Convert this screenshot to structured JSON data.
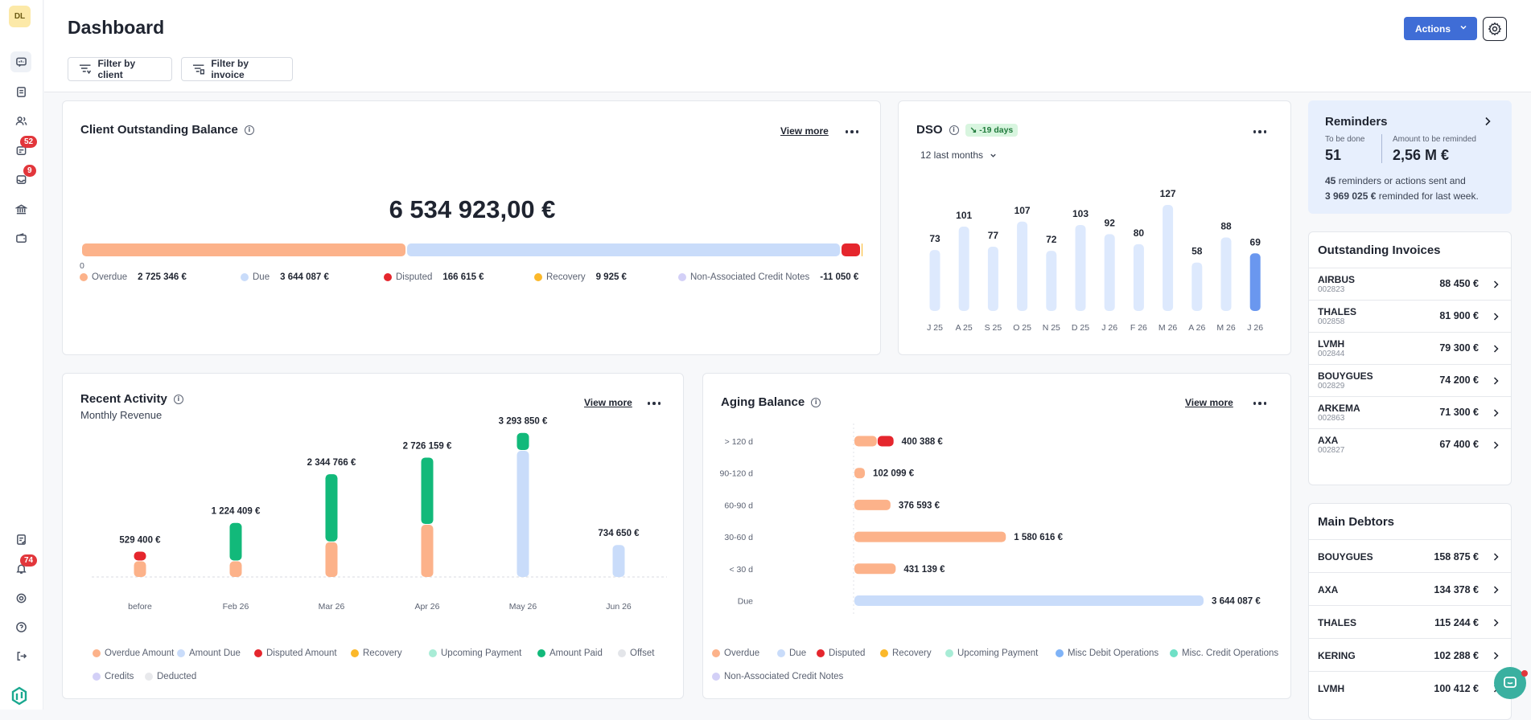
{
  "sidebar": {
    "avatar": "DL",
    "badges": {
      "invoices": "52",
      "inbox": "9",
      "notifications": "74"
    }
  },
  "header": {
    "title": "Dashboard",
    "filter_client": "Filter by client",
    "filter_invoice": "Filter by invoice",
    "actions": "Actions"
  },
  "outstanding": {
    "title": "Client Outstanding Balance",
    "view_more": "View more",
    "total": "6 534 923,00 €",
    "zero": "0",
    "segments": [
      {
        "label": "Overdue",
        "value": "2 725 346 €",
        "amount": 2725346,
        "color": "#fcb28a"
      },
      {
        "label": "Due",
        "value": "3 644 087 €",
        "amount": 3644087,
        "color": "#c9dcfa"
      },
      {
        "label": "Disputed",
        "value": "166 615 €",
        "amount": 166615,
        "color": "#e5262d"
      },
      {
        "label": "Recovery",
        "value": "9 925 €",
        "amount": 9925,
        "color": "#fbb82a"
      },
      {
        "label": "Non-Associated Credit Notes",
        "value": "-11 050 €",
        "amount": -11050,
        "color": "#d3d0f7"
      }
    ]
  },
  "dso": {
    "title": "DSO",
    "delta": "↘ -19 days",
    "period": "12 last months",
    "chart_data": {
      "type": "bar",
      "categories": [
        "J 25",
        "A 25",
        "S 25",
        "O 25",
        "N 25",
        "D 25",
        "J 26",
        "F 26",
        "M 26",
        "A 26",
        "M 26",
        "J 26"
      ],
      "values": [
        73,
        101,
        77,
        107,
        72,
        103,
        92,
        80,
        127,
        58,
        88,
        69
      ],
      "highlight_index": 11,
      "colors": {
        "bar": "#dde9fd",
        "highlight": "#6a97ef"
      }
    }
  },
  "reminders": {
    "title": "Reminders",
    "todo_label": "To be done",
    "todo_value": "51",
    "amount_label": "Amount to be reminded",
    "amount_value": "2,56 M €",
    "summary_count": "45",
    "summary_text1": " reminders or actions sent and",
    "summary_amount": "3 969 025 €",
    "summary_text2": " reminded for last week."
  },
  "outstanding_invoices": {
    "title": "Outstanding Invoices",
    "items": [
      {
        "name": "AIRBUS",
        "code": "002823",
        "amount": "88 450 €"
      },
      {
        "name": "THALES",
        "code": "002858",
        "amount": "81 900 €"
      },
      {
        "name": "LVMH",
        "code": "002844",
        "amount": "79 300 €"
      },
      {
        "name": "BOUYGUES",
        "code": "002829",
        "amount": "74 200 €"
      },
      {
        "name": "ARKEMA",
        "code": "002863",
        "amount": "71 300 €"
      },
      {
        "name": "AXA",
        "code": "002827",
        "amount": "67 400 €"
      }
    ]
  },
  "main_debtors": {
    "title": "Main Debtors",
    "items": [
      {
        "name": "BOUYGUES",
        "amount": "158 875 €"
      },
      {
        "name": "AXA",
        "amount": "134 378 €"
      },
      {
        "name": "THALES",
        "amount": "115 244 €"
      },
      {
        "name": "KERING",
        "amount": "102 288 €"
      },
      {
        "name": "LVMH",
        "amount": "100 412 €"
      }
    ]
  },
  "recent_activity": {
    "title": "Recent Activity",
    "subtitle": "Monthly Revenue",
    "view_more": "View more",
    "chart_data": {
      "type": "bar",
      "stacked": true,
      "categories": [
        "before",
        "Feb 26",
        "Mar 26",
        "Apr 26",
        "May 26",
        "Jun 26"
      ],
      "totals": [
        "529 400 €",
        "1 224 409 €",
        "2 344 766 €",
        "2 726 159 €",
        "3 293 850 €",
        "734 650 €"
      ],
      "series": [
        {
          "name": "Overdue Amount",
          "color": "#fcb28a",
          "values": [
            360000,
            360000,
            800000,
            1200000,
            0,
            0
          ]
        },
        {
          "name": "Amount Due",
          "color": "#c9dcfa",
          "values": [
            0,
            0,
            0,
            0,
            2900000,
            734650
          ]
        },
        {
          "name": "Disputed Amount",
          "color": "#e5262d",
          "values": [
            169400,
            0,
            0,
            0,
            0,
            0
          ]
        },
        {
          "name": "Recovery",
          "color": "#fbb82a",
          "values": [
            0,
            0,
            0,
            0,
            0,
            0
          ]
        },
        {
          "name": "Upcoming Payment",
          "color": "#a8ecd6",
          "values": [
            0,
            0,
            0,
            0,
            0,
            0
          ]
        },
        {
          "name": "Amount Paid",
          "color": "#12b97a",
          "values": [
            0,
            864409,
            1544766,
            1526159,
            393850,
            0
          ]
        },
        {
          "name": "Offset",
          "color": "#e3e5e9",
          "values": [
            0,
            0,
            0,
            0,
            0,
            0
          ]
        },
        {
          "name": "Credits",
          "color": "#d3d0f7",
          "values": [
            0,
            0,
            0,
            0,
            0,
            0
          ]
        },
        {
          "name": "Deducted",
          "color": "#e8e9ec",
          "values": [
            0,
            0,
            0,
            0,
            0,
            0
          ]
        }
      ],
      "ylim": [
        0,
        3400000
      ]
    }
  },
  "aging": {
    "title": "Aging Balance",
    "view_more": "View more",
    "chart_data": {
      "type": "bar",
      "orientation": "horizontal",
      "categories": [
        "> 120 d",
        "90-120 d",
        "60-90 d",
        "30-60 d",
        "< 30 d",
        "Due"
      ],
      "labels": [
        "400 388 €",
        "102 099 €",
        "376 593 €",
        "1 580 616 €",
        "431 139 €",
        "3 644 087 €"
      ],
      "series": [
        {
          "name": "Overdue",
          "color": "#fcb28a",
          "values": [
            233773,
            102099,
            376593,
            1580616,
            431139,
            0
          ]
        },
        {
          "name": "Due",
          "color": "#c9dcfa",
          "values": [
            0,
            0,
            0,
            0,
            0,
            3644087
          ]
        },
        {
          "name": "Disputed",
          "color": "#e5262d",
          "values": [
            166615,
            0,
            0,
            0,
            0,
            0
          ]
        }
      ],
      "xlim": [
        0,
        3644087
      ]
    },
    "legend": [
      {
        "label": "Overdue",
        "color": "#fcb28a"
      },
      {
        "label": "Due",
        "color": "#c9dcfa"
      },
      {
        "label": "Disputed",
        "color": "#e5262d"
      },
      {
        "label": "Recovery",
        "color": "#fbb82a"
      },
      {
        "label": "Upcoming Payment",
        "color": "#a8ecd6"
      },
      {
        "label": "Misc Debit Operations",
        "color": "#7fb3f7"
      },
      {
        "label": "Misc. Credit Operations",
        "color": "#6fe0c6"
      },
      {
        "label": "Non-Associated Credit Notes",
        "color": "#d3d0f7"
      }
    ]
  }
}
